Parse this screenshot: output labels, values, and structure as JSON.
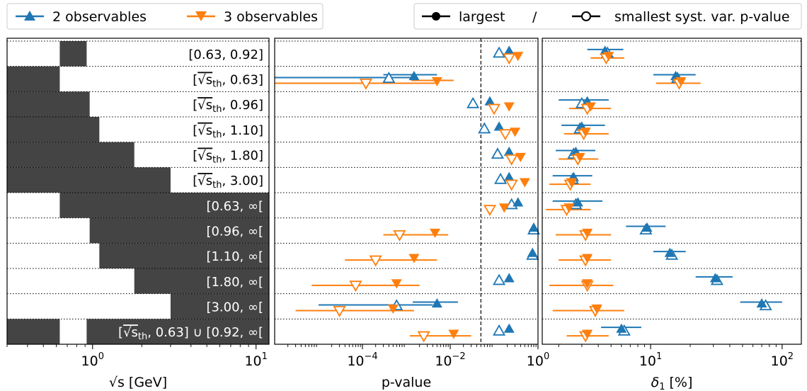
{
  "colors": {
    "blue": "#1f77b4",
    "orange": "#ff7f0e",
    "bar": "#444444",
    "frame": "#000000"
  },
  "legend_left": [
    {
      "label": "2 observables",
      "color": "#1f77b4",
      "marker": "triangle-up"
    },
    {
      "label": "3 observables",
      "color": "#ff7f0e",
      "marker": "triangle-down"
    }
  ],
  "legend_right": {
    "filled_label": "largest",
    "separator": "/",
    "open_label": "smallest syst. var. p-value"
  },
  "chart_data": [
    {
      "type": "bar",
      "orientation": "horizontal-range",
      "xlabel": "√s [GeV]",
      "xscale": "log",
      "xlim": [
        0.3,
        12
      ],
      "xticks": [
        {
          "value": 1,
          "base": "10",
          "exp": "0"
        },
        {
          "value": 10,
          "base": "10",
          "exp": "1"
        }
      ],
      "note": "",
      "rows": [
        {
          "label": "[0.63, 0.92]",
          "label_color": "#000000",
          "ranges": [
            [
              0.63,
              0.92
            ]
          ]
        },
        {
          "label_parts": [
            "[",
            "√s",
            "th",
            ", 0.63]"
          ],
          "label_color": "#000000",
          "ranges": [
            [
              0.3,
              0.63
            ]
          ]
        },
        {
          "label_parts": [
            "[",
            "√s",
            "th",
            ", 0.96]"
          ],
          "label_color": "#000000",
          "ranges": [
            [
              0.3,
              0.96
            ]
          ]
        },
        {
          "label_parts": [
            "[",
            "√s",
            "th",
            ", 1.10]"
          ],
          "label_color": "#000000",
          "ranges": [
            [
              0.3,
              1.1
            ]
          ]
        },
        {
          "label_parts": [
            "[",
            "√s",
            "th",
            ", 1.80]"
          ],
          "label_color": "#000000",
          "ranges": [
            [
              0.3,
              1.8
            ]
          ]
        },
        {
          "label_parts": [
            "[",
            "√s",
            "th",
            ", 3.00]"
          ],
          "label_color": "#000000",
          "ranges": [
            [
              0.3,
              3.0
            ]
          ]
        },
        {
          "label": "[0.63, ∞[",
          "label_color": "#ffffff",
          "ranges": [
            [
              0.63,
              12
            ]
          ]
        },
        {
          "label": "[0.96, ∞[",
          "label_color": "#ffffff",
          "ranges": [
            [
              0.96,
              12
            ]
          ]
        },
        {
          "label": "[1.10, ∞[",
          "label_color": "#ffffff",
          "ranges": [
            [
              1.1,
              12
            ]
          ]
        },
        {
          "label": "[1.80, ∞[",
          "label_color": "#ffffff",
          "ranges": [
            [
              1.8,
              12
            ]
          ]
        },
        {
          "label": "[3.00, ∞[",
          "label_color": "#ffffff",
          "ranges": [
            [
              3.0,
              12
            ]
          ]
        },
        {
          "label_parts": [
            "[",
            "√s",
            "th",
            ", 0.63] ∪ [0.92, ∞["
          ],
          "label_color": "#ffffff",
          "ranges": [
            [
              0.3,
              0.63
            ],
            [
              0.92,
              12
            ]
          ]
        }
      ]
    },
    {
      "type": "scatter",
      "xlabel": "p-value",
      "xscale": "log",
      "xlim": [
        1e-06,
        1
      ],
      "xticks": [
        {
          "value": 0.0001,
          "base": "10",
          "exp": "−4"
        },
        {
          "value": 0.01,
          "base": "10",
          "exp": "−2"
        },
        {
          "value": 1,
          "base": "10",
          "exp": "0"
        }
      ],
      "reference_line": 0.05,
      "rows": [
        {
          "blue_filled": 0.22,
          "blue_open": 0.13,
          "orange_filled": 0.35,
          "orange_open": 0.22,
          "blue_err": null,
          "orange_err": null
        },
        {
          "blue_filled": 0.0015,
          "blue_open": 0.0004,
          "orange_filled": 0.005,
          "orange_open": 0.00012,
          "blue_err": [
            0.0003,
            0.005
          ],
          "orange_err": [
            1e-06,
            0.0045
          ],
          "orange_f_err": [
            0.0013,
            0.012
          ],
          "blue_o_err": [
            1e-06,
            0.0014
          ]
        },
        {
          "blue_filled": 0.08,
          "blue_open": 0.033,
          "orange_filled": 0.22,
          "orange_open": 0.1,
          "blue_err": null,
          "orange_err": null
        },
        {
          "blue_filled": 0.13,
          "blue_open": 0.06,
          "orange_filled": 0.3,
          "orange_open": 0.18,
          "blue_err": null,
          "orange_err": null
        },
        {
          "blue_filled": 0.22,
          "blue_open": 0.12,
          "orange_filled": 0.4,
          "orange_open": 0.25,
          "blue_err": null,
          "orange_err": null
        },
        {
          "blue_filled": 0.22,
          "blue_open": 0.14,
          "orange_filled": 0.5,
          "orange_open": 0.25,
          "blue_err": null,
          "orange_err": null
        },
        {
          "blue_filled": 0.35,
          "blue_open": 0.25,
          "orange_filled": 0.17,
          "orange_open": 0.08,
          "blue_err": null,
          "orange_err": null
        },
        {
          "blue_filled": 0.8,
          "blue_open": 0.8,
          "orange_filled": 0.0045,
          "orange_open": 0.0007,
          "blue_err": null,
          "orange_err": [
            0.0003,
            0.009
          ]
        },
        {
          "blue_filled": 0.75,
          "blue_open": 0.75,
          "orange_filled": 0.0015,
          "orange_open": 0.0002,
          "blue_err": null,
          "orange_err": [
            4e-05,
            0.005
          ]
        },
        {
          "blue_filled": 0.22,
          "blue_open": 0.13,
          "orange_filled": 0.0006,
          "orange_open": 7e-05,
          "blue_err": null,
          "orange_err": [
            7e-06,
            0.002
          ]
        },
        {
          "blue_filled": 0.005,
          "blue_open": 0.0006,
          "orange_filled": 0.0005,
          "orange_open": 3e-05,
          "blue_err": [
            0.0014,
            0.015
          ],
          "orange_err": [
            3e-06,
            0.0015
          ],
          "blue_o_err": [
            1e-05,
            0.004
          ]
        },
        {
          "blue_filled": 0.22,
          "blue_open": 0.13,
          "orange_filled": 0.012,
          "orange_open": 0.0025,
          "blue_err": null,
          "orange_err": [
            0.0012,
            0.03
          ]
        }
      ]
    },
    {
      "type": "scatter",
      "xlabel_base": "δ",
      "xlabel_sub": "1",
      "xlabel_unit": " [%]",
      "xscale": "log",
      "xlim": [
        1.5,
        140
      ],
      "xticks": [
        {
          "value": 10,
          "base": "10",
          "exp": "1"
        },
        {
          "value": 100,
          "base": "10",
          "exp": "2"
        }
      ],
      "rows": [
        {
          "blue_filled": 4.5,
          "blue_open": 4.7,
          "orange_filled": 4.8,
          "orange_open": 4.6,
          "blue_err": [
            3.3,
            6.2
          ],
          "orange_err": [
            3.5,
            6.3
          ]
        },
        {
          "blue_filled": 15.5,
          "blue_open": 16,
          "orange_filled": 17,
          "orange_open": 16.5,
          "blue_err": [
            10.5,
            22
          ],
          "orange_err": [
            11,
            24
          ]
        },
        {
          "blue_filled": 3.3,
          "blue_open": 3.0,
          "orange_filled": 3.5,
          "orange_open": 3.3,
          "blue_err": [
            2.0,
            4.8
          ],
          "orange_err": [
            2.4,
            5.0
          ]
        },
        {
          "blue_filled": 3.0,
          "blue_open": 2.9,
          "orange_filled": 3.2,
          "orange_open": 3.1,
          "blue_err": [
            2.1,
            4.5
          ],
          "orange_err": [
            2.2,
            4.8
          ]
        },
        {
          "blue_filled": 2.7,
          "blue_open": 2.6,
          "orange_filled": 2.9,
          "orange_open": 2.8,
          "blue_err": [
            1.9,
            3.8
          ],
          "orange_err": [
            2.0,
            4.0
          ]
        },
        {
          "blue_filled": 2.6,
          "blue_open": 2.55,
          "orange_filled": 2.5,
          "orange_open": 2.45,
          "blue_err": [
            1.8,
            3.6
          ],
          "orange_err": [
            1.7,
            3.5
          ]
        },
        {
          "blue_filled": 2.8,
          "blue_open": 2.7,
          "orange_filled": 2.4,
          "orange_open": 2.3,
          "blue_err": [
            1.8,
            4.3
          ],
          "orange_err": [
            1.6,
            3.5
          ]
        },
        {
          "blue_filled": 9.4,
          "blue_open": 9.2,
          "orange_filled": 3.3,
          "orange_open": 3.2,
          "blue_err": [
            6.5,
            13
          ],
          "orange_err": [
            1.9,
            5.0
          ]
        },
        {
          "blue_filled": 14,
          "blue_open": 14.5,
          "orange_filled": 3.3,
          "orange_open": 3.2,
          "blue_err": [
            10.5,
            18.5
          ],
          "orange_err": [
            2.0,
            5.0
          ]
        },
        {
          "blue_filled": 31,
          "blue_open": 32,
          "orange_filled": 3.3,
          "orange_open": 3.3,
          "blue_err": [
            22,
            42
          ],
          "orange_err": [
            1.7,
            5.2
          ]
        },
        {
          "blue_filled": 70,
          "blue_open": 75,
          "orange_filled": 3.9,
          "orange_open": 3.8,
          "blue_err": [
            48,
            100
          ],
          "orange_err": [
            1.8,
            6.3
          ]
        },
        {
          "blue_filled": 6.0,
          "blue_open": 6.3,
          "orange_filled": 3.3,
          "orange_open": 3.2,
          "blue_err": [
            4.2,
            8.5
          ],
          "orange_err": [
            2.3,
            4.8
          ]
        }
      ]
    }
  ]
}
